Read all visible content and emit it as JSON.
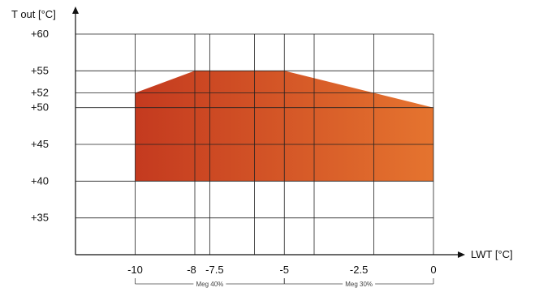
{
  "chart_data": {
    "type": "area",
    "xlabel": "LWT [°C]",
    "ylabel": "T out [°C]",
    "xlim": [
      -12,
      0
    ],
    "ylim": [
      30,
      60
    ],
    "x_ticks": [
      {
        "value": -10,
        "label": "-10"
      },
      {
        "value": -8,
        "label": "-8"
      },
      {
        "value": -7.5,
        "label": "-7.5"
      },
      {
        "value": -5,
        "label": "-5"
      },
      {
        "value": -2.5,
        "label": "-2.5"
      },
      {
        "value": 0,
        "label": "0"
      }
    ],
    "x_grid": [
      -12,
      -10,
      -8,
      -7.5,
      -6,
      -5,
      -4,
      -2,
      0
    ],
    "y_ticks": [
      {
        "value": 60,
        "label": "+60"
      },
      {
        "value": 55,
        "label": "+55"
      },
      {
        "value": 52,
        "label": "+52"
      },
      {
        "value": 50,
        "label": "+50"
      },
      {
        "value": 45,
        "label": "+45"
      },
      {
        "value": 40,
        "label": "+40"
      },
      {
        "value": 35,
        "label": "+35"
      }
    ],
    "region": {
      "boundary": [
        {
          "x": -10,
          "y": 40
        },
        {
          "x": -10,
          "y": 52
        },
        {
          "x": -8,
          "y": 55
        },
        {
          "x": -5,
          "y": 55
        },
        {
          "x": 0,
          "y": 50
        },
        {
          "x": 0,
          "y": 40
        }
      ],
      "color_start": "#c43a1f",
      "color_end": "#e5742f"
    },
    "annotations": [
      {
        "label": "Meg 40%",
        "from": -10,
        "to": -5
      },
      {
        "label": "Meg 30%",
        "from": -5,
        "to": 0
      }
    ],
    "grid": true
  }
}
